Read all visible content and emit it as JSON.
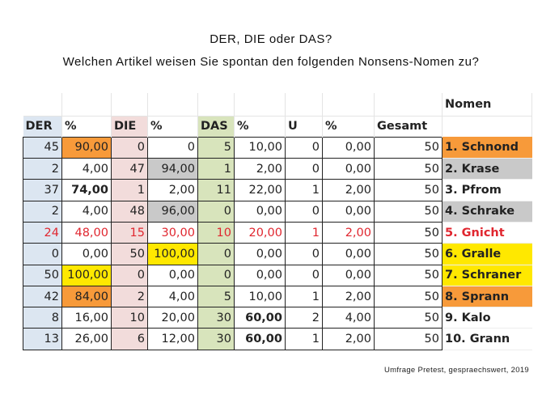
{
  "title": "DER, DIE oder DAS?",
  "subtitle": "Welchen Artikel weisen Sie spontan den folgenden Nonsens-Nomen zu?",
  "nomen_header": "Nomen",
  "headers": [
    "DER",
    "%",
    "DIE",
    "%",
    "DAS",
    "%",
    "U",
    "%",
    "Gesamt"
  ],
  "rows": [
    {
      "v": [
        "45",
        "90,00",
        "0",
        "0",
        "5",
        "10,00",
        "0",
        "0,00",
        "50"
      ],
      "nomen": "1. Schnond",
      "nomen_hl": "orange",
      "hl": {
        "1": "orange"
      },
      "bold": [],
      "red": false
    },
    {
      "v": [
        "2",
        "4,00",
        "47",
        "94,00",
        "1",
        "2,00",
        "0",
        "0,00",
        "50"
      ],
      "nomen": "2. Krase",
      "nomen_hl": "gray",
      "hl": {
        "3": "gray"
      },
      "bold": [],
      "red": false
    },
    {
      "v": [
        "37",
        "74,00",
        "1",
        "2,00",
        "11",
        "22,00",
        "1",
        "2,00",
        "50"
      ],
      "nomen": "3. Pfrom",
      "nomen_hl": "",
      "hl": {},
      "bold": [
        1
      ],
      "red": false
    },
    {
      "v": [
        "2",
        "4,00",
        "48",
        "96,00",
        "0",
        "0,00",
        "0",
        "0,00",
        "50"
      ],
      "nomen": "4. Schrake",
      "nomen_hl": "gray",
      "hl": {
        "3": "gray"
      },
      "bold": [],
      "red": false
    },
    {
      "v": [
        "24",
        "48,00",
        "15",
        "30,00",
        "10",
        "20,00",
        "1",
        "2,00",
        "50"
      ],
      "nomen": "5. Gnicht",
      "nomen_hl": "",
      "hl": {},
      "bold": [],
      "red": true
    },
    {
      "v": [
        "0",
        "0,00",
        "50",
        "100,00",
        "0",
        "0,00",
        "0",
        "0,00",
        "50"
      ],
      "nomen": "6. Gralle",
      "nomen_hl": "yellow",
      "hl": {
        "3": "yellow"
      },
      "bold": [],
      "red": false
    },
    {
      "v": [
        "50",
        "100,00",
        "0",
        "0,00",
        "0",
        "0,00",
        "0",
        "0,00",
        "50"
      ],
      "nomen": "7. Schraner",
      "nomen_hl": "yellow",
      "hl": {
        "1": "yellow"
      },
      "bold": [],
      "red": false
    },
    {
      "v": [
        "42",
        "84,00",
        "2",
        "4,00",
        "5",
        "10,00",
        "1",
        "2,00",
        "50"
      ],
      "nomen": "8. Sprann",
      "nomen_hl": "orange",
      "hl": {
        "1": "orange"
      },
      "bold": [],
      "red": false
    },
    {
      "v": [
        "8",
        "16,00",
        "10",
        "20,00",
        "30",
        "60,00",
        "2",
        "4,00",
        "50"
      ],
      "nomen": "9. Kalo",
      "nomen_hl": "",
      "hl": {},
      "bold": [
        5
      ],
      "red": false
    },
    {
      "v": [
        "13",
        "26,00",
        "6",
        "12,00",
        "30",
        "60,00",
        "1",
        "2,00",
        "50"
      ],
      "nomen": "10. Grann",
      "nomen_hl": "",
      "hl": {},
      "bold": [
        5
      ],
      "red": false
    }
  ],
  "footer": "Umfrage Pretest, gespraechswert, 2019"
}
